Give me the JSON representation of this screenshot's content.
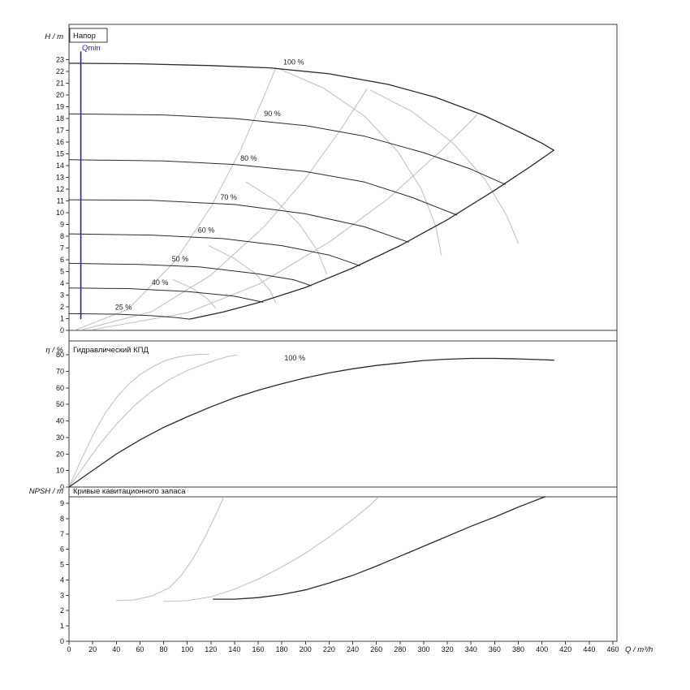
{
  "x_axis": {
    "label": "Q / m³/h",
    "min": 0,
    "max": 460,
    "ticks": [
      0,
      20,
      40,
      60,
      80,
      100,
      120,
      140,
      160,
      180,
      200,
      220,
      240,
      260,
      280,
      300,
      320,
      340,
      360,
      380,
      400,
      420,
      440,
      460
    ]
  },
  "colors": {
    "curve": "#2a2a2a",
    "muted": "#bdbdbd",
    "qmin": "#1f1fbf",
    "frame": "#3c3c3c"
  },
  "chart_data": [
    {
      "type": "line",
      "name": "head",
      "title": "Напор",
      "ylabel": "H / m",
      "ylim": [
        0,
        23
      ],
      "yticks": [
        0,
        1,
        2,
        3,
        4,
        5,
        6,
        7,
        8,
        9,
        10,
        11,
        12,
        13,
        14,
        15,
        16,
        17,
        18,
        19,
        20,
        21,
        22,
        23
      ],
      "qmin": {
        "label": "Qmin",
        "q": 10,
        "from": 0.95,
        "to": 23.7,
        "color": "#1f1fbf"
      },
      "labels": [
        {
          "text": "100 %",
          "q": 190,
          "v": 22.6
        },
        {
          "text": "90 %",
          "q": 172,
          "v": 18.2
        },
        {
          "text": "80 %",
          "q": 152,
          "v": 14.4
        },
        {
          "text": "70 %",
          "q": 135,
          "v": 11.1
        },
        {
          "text": "60 %",
          "q": 116,
          "v": 8.3
        },
        {
          "text": "50 %",
          "q": 94,
          "v": 5.85
        },
        {
          "text": "40 %",
          "q": 77,
          "v": 3.85
        },
        {
          "text": "25 %",
          "q": 46,
          "v": 1.75
        }
      ],
      "series": [
        {
          "name": "affinity-parabola-1",
          "color": "#bdbdbd",
          "width": 1,
          "points": [
            [
              5,
              0.02
            ],
            [
              50,
              1.8
            ],
            [
              90,
              5.9
            ],
            [
              120,
              10.5
            ],
            [
              145,
              15.3
            ],
            [
              165,
              19.9
            ],
            [
              175,
              22.3
            ]
          ]
        },
        {
          "name": "affinity-parabola-2",
          "color": "#bdbdbd",
          "width": 1,
          "points": [
            [
              10,
              0.03
            ],
            [
              70,
              1.6
            ],
            [
              120,
              4.7
            ],
            [
              165,
              8.8
            ],
            [
              200,
              12.9
            ],
            [
              230,
              17.1
            ],
            [
              252,
              20.5
            ]
          ]
        },
        {
          "name": "affinity-parabola-3",
          "color": "#bdbdbd",
          "width": 1,
          "points": [
            [
              20,
              0.06
            ],
            [
              100,
              1.5
            ],
            [
              160,
              3.9
            ],
            [
              220,
              7.5
            ],
            [
              270,
              11.2
            ],
            [
              315,
              15.3
            ],
            [
              345,
              18.3
            ]
          ]
        },
        {
          "name": "iso-efficiency-1",
          "color": "#bdbdbd",
          "width": 1,
          "points": [
            [
              178,
              22.2
            ],
            [
              215,
              20.6
            ],
            [
              250,
              18.2
            ],
            [
              278,
              15.2
            ],
            [
              298,
              12.0
            ],
            [
              310,
              8.9
            ],
            [
              315,
              6.4
            ]
          ]
        },
        {
          "name": "iso-efficiency-2",
          "color": "#bdbdbd",
          "width": 1,
          "points": [
            [
              255,
              20.4
            ],
            [
              290,
              18.6
            ],
            [
              325,
              15.9
            ],
            [
              352,
              12.8
            ],
            [
              370,
              9.8
            ],
            [
              380,
              7.4
            ]
          ]
        },
        {
          "name": "iso-efficiency-3",
          "color": "#bdbdbd",
          "width": 1,
          "points": [
            [
              150,
              12.6
            ],
            [
              175,
              11.0
            ],
            [
              195,
              9.0
            ],
            [
              210,
              6.8
            ],
            [
              218,
              4.8
            ]
          ]
        },
        {
          "name": "iso-efficiency-4",
          "color": "#bdbdbd",
          "width": 1,
          "points": [
            [
              118,
              7.2
            ],
            [
              140,
              6.1
            ],
            [
              158,
              4.8
            ],
            [
              170,
              3.4
            ],
            [
              175,
              2.3
            ]
          ]
        },
        {
          "name": "iso-efficiency-5",
          "color": "#bdbdbd",
          "width": 1,
          "points": [
            [
              88,
              4.3
            ],
            [
              104,
              3.6
            ],
            [
              117,
              2.7
            ],
            [
              124,
              1.9
            ]
          ]
        },
        {
          "name": "speed-90",
          "color": "#2a2a2a",
          "width": 1,
          "points": [
            [
              0,
              18.4
            ],
            [
              80,
              18.3
            ],
            [
              140,
              18.0
            ],
            [
              200,
              17.4
            ],
            [
              250,
              16.5
            ],
            [
              300,
              15.1
            ],
            [
              340,
              13.7
            ],
            [
              369,
              12.4
            ]
          ]
        },
        {
          "name": "speed-80",
          "color": "#2a2a2a",
          "width": 1,
          "points": [
            [
              0,
              14.5
            ],
            [
              80,
              14.4
            ],
            [
              140,
              14.1
            ],
            [
              200,
              13.5
            ],
            [
              250,
              12.6
            ],
            [
              290,
              11.3
            ],
            [
              328,
              9.8
            ]
          ]
        },
        {
          "name": "speed-70",
          "color": "#2a2a2a",
          "width": 1,
          "points": [
            [
              0,
              11.1
            ],
            [
              70,
              11.05
            ],
            [
              140,
              10.7
            ],
            [
              200,
              9.9
            ],
            [
              250,
              8.8
            ],
            [
              287,
              7.5
            ]
          ]
        },
        {
          "name": "speed-60",
          "color": "#2a2a2a",
          "width": 1,
          "points": [
            [
              0,
              8.2
            ],
            [
              70,
              8.1
            ],
            [
              130,
              7.8
            ],
            [
              180,
              7.2
            ],
            [
              220,
              6.4
            ],
            [
              246,
              5.5
            ]
          ]
        },
        {
          "name": "speed-50",
          "color": "#2a2a2a",
          "width": 1,
          "points": [
            [
              0,
              5.7
            ],
            [
              60,
              5.6
            ],
            [
              110,
              5.4
            ],
            [
              160,
              4.8
            ],
            [
              190,
              4.3
            ],
            [
              205,
              3.8
            ]
          ]
        },
        {
          "name": "speed-40",
          "color": "#2a2a2a",
          "width": 1,
          "points": [
            [
              0,
              3.6
            ],
            [
              50,
              3.55
            ],
            [
              100,
              3.3
            ],
            [
              140,
              2.9
            ],
            [
              164,
              2.4
            ]
          ]
        },
        {
          "name": "speed-25",
          "color": "#2a2a2a",
          "width": 1,
          "points": [
            [
              0,
              1.42
            ],
            [
              40,
              1.38
            ],
            [
              70,
              1.25
            ],
            [
              90,
              1.1
            ],
            [
              102,
              0.96
            ]
          ]
        },
        {
          "name": "speed-100",
          "color": "#2a2a2a",
          "width": 1.3,
          "points": [
            [
              0,
              22.7
            ],
            [
              60,
              22.65
            ],
            [
              120,
              22.5
            ],
            [
              170,
              22.3
            ],
            [
              220,
              21.8
            ],
            [
              270,
              20.9
            ],
            [
              310,
              19.8
            ],
            [
              350,
              18.3
            ],
            [
              380,
              16.9
            ],
            [
              400,
              15.9
            ],
            [
              410,
              15.3
            ]
          ]
        },
        {
          "name": "operating-limit",
          "color": "#2a2a2a",
          "width": 1.3,
          "points": [
            [
              102,
              0.96
            ],
            [
              130,
              1.55
            ],
            [
              160,
              2.35
            ],
            [
              200,
              3.65
            ],
            [
              240,
              5.3
            ],
            [
              280,
              7.2
            ],
            [
              320,
              9.4
            ],
            [
              360,
              11.9
            ],
            [
              390,
              13.9
            ],
            [
              410,
              15.3
            ]
          ]
        }
      ]
    },
    {
      "type": "line",
      "name": "efficiency",
      "title": "Гидравлический КПД",
      "ylabel": "η / %",
      "ylim": [
        0,
        80
      ],
      "yticks": [
        0,
        10,
        20,
        30,
        40,
        50,
        60,
        70,
        80
      ],
      "labels": [
        {
          "text": "100 %",
          "q": 191,
          "v": 76.5
        }
      ],
      "series": [
        {
          "name": "efficiency-reduced-1",
          "color": "#bdbdbd",
          "width": 1,
          "points": [
            [
              0,
              0
            ],
            [
              10,
              16
            ],
            [
              20,
              31
            ],
            [
              30,
              44
            ],
            [
              40,
              54
            ],
            [
              50,
              62
            ],
            [
              60,
              68
            ],
            [
              70,
              72.5
            ],
            [
              80,
              76
            ],
            [
              90,
              78.3
            ],
            [
              100,
              79.6
            ],
            [
              110,
              80.2
            ],
            [
              118,
              80.3
            ]
          ]
        },
        {
          "name": "efficiency-reduced-2",
          "color": "#bdbdbd",
          "width": 1,
          "points": [
            [
              0,
              0
            ],
            [
              12,
              12
            ],
            [
              25,
              25
            ],
            [
              40,
              38
            ],
            [
              55,
              49
            ],
            [
              70,
              58
            ],
            [
              85,
              65
            ],
            [
              100,
              70.5
            ],
            [
              115,
              74.5
            ],
            [
              125,
              77
            ],
            [
              135,
              79
            ],
            [
              142,
              79.8
            ]
          ]
        },
        {
          "name": "efficiency-100",
          "color": "#2a2a2a",
          "width": 1.3,
          "points": [
            [
              0,
              0
            ],
            [
              20,
              10
            ],
            [
              40,
              20
            ],
            [
              60,
              28.5
            ],
            [
              80,
              36
            ],
            [
              100,
              42.5
            ],
            [
              120,
              48.5
            ],
            [
              140,
              54
            ],
            [
              160,
              58.5
            ],
            [
              180,
              62.5
            ],
            [
              200,
              66
            ],
            [
              220,
              69
            ],
            [
              240,
              71.5
            ],
            [
              260,
              73.5
            ],
            [
              280,
              75
            ],
            [
              300,
              76.5
            ],
            [
              320,
              77.3
            ],
            [
              340,
              77.8
            ],
            [
              360,
              77.8
            ],
            [
              380,
              77.5
            ],
            [
              400,
              77
            ],
            [
              410,
              76.7
            ]
          ]
        }
      ]
    },
    {
      "type": "line",
      "name": "npsh",
      "title": "Кривые кавитационного запаса",
      "ylabel": "NPSH / m",
      "ylim": [
        0,
        9
      ],
      "yticks": [
        0,
        1,
        2,
        3,
        4,
        5,
        6,
        7,
        8,
        9
      ],
      "series": [
        {
          "name": "npsh-reduced-1",
          "color": "#bdbdbd",
          "width": 1,
          "points": [
            [
              40,
              2.65
            ],
            [
              55,
              2.7
            ],
            [
              70,
              2.95
            ],
            [
              85,
              3.5
            ],
            [
              95,
              4.3
            ],
            [
              105,
              5.4
            ],
            [
              115,
              6.8
            ],
            [
              125,
              8.4
            ],
            [
              132,
              9.6
            ]
          ]
        },
        {
          "name": "npsh-reduced-2",
          "color": "#bdbdbd",
          "width": 1,
          "points": [
            [
              80,
              2.6
            ],
            [
              100,
              2.65
            ],
            [
              120,
              2.9
            ],
            [
              140,
              3.4
            ],
            [
              160,
              4.05
            ],
            [
              180,
              4.85
            ],
            [
              200,
              5.75
            ],
            [
              220,
              6.8
            ],
            [
              240,
              7.95
            ],
            [
              255,
              8.9
            ],
            [
              263,
              9.5
            ]
          ]
        },
        {
          "name": "npsh-100",
          "color": "#2a2a2a",
          "width": 1.3,
          "points": [
            [
              122,
              2.75
            ],
            [
              140,
              2.75
            ],
            [
              160,
              2.85
            ],
            [
              180,
              3.05
            ],
            [
              200,
              3.35
            ],
            [
              220,
              3.8
            ],
            [
              240,
              4.3
            ],
            [
              260,
              4.9
            ],
            [
              280,
              5.55
            ],
            [
              300,
              6.2
            ],
            [
              320,
              6.85
            ],
            [
              340,
              7.5
            ],
            [
              360,
              8.1
            ],
            [
              380,
              8.75
            ],
            [
              400,
              9.35
            ],
            [
              410,
              9.6
            ]
          ]
        }
      ]
    }
  ]
}
